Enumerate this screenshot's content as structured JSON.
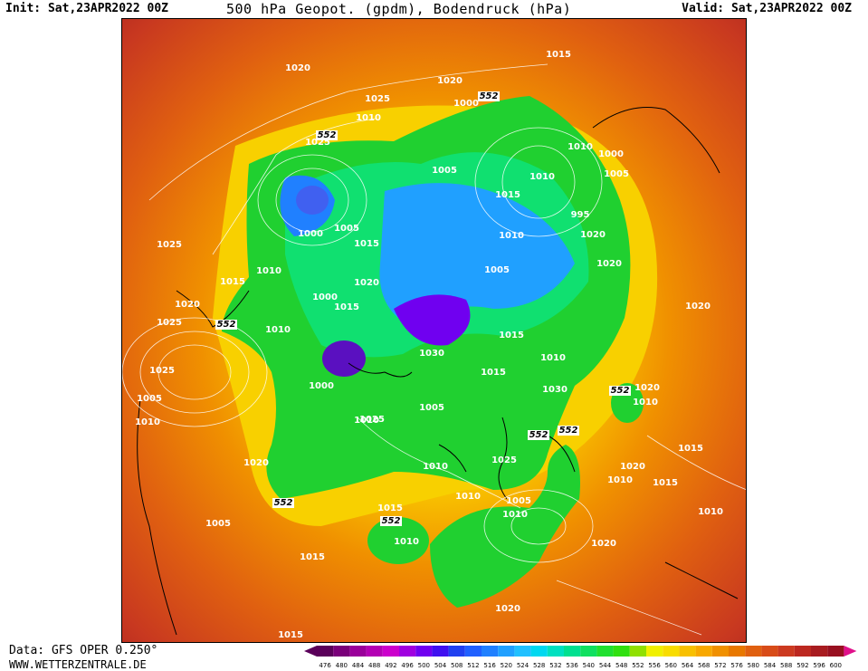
{
  "header": {
    "init": "Init: Sat,23APR2022 00Z",
    "title": "500 hPa Geopot. (gpdm), Bodendruck (hPa)",
    "valid": "Valid: Sat,23APR2022 00Z"
  },
  "footer": {
    "data_source": "Data: GFS OPER 0.250°",
    "site": "WWW.WETTERZENTRALE.DE"
  },
  "legend": {
    "values": [
      "476",
      "480",
      "484",
      "488",
      "492",
      "496",
      "500",
      "504",
      "508",
      "512",
      "516",
      "520",
      "524",
      "528",
      "532",
      "536",
      "540",
      "544",
      "548",
      "552",
      "556",
      "560",
      "564",
      "568",
      "572",
      "576",
      "580",
      "584",
      "588",
      "592",
      "596",
      "600"
    ],
    "colors": [
      "#5a005a",
      "#7a007a",
      "#9a009a",
      "#b400b4",
      "#cc00cc",
      "#a000e0",
      "#7000f0",
      "#4010f0",
      "#2040f0",
      "#2060ff",
      "#2080ff",
      "#20a0ff",
      "#20c0ff",
      "#00d8f0",
      "#00e0c0",
      "#00e090",
      "#10e060",
      "#20e030",
      "#30e010",
      "#90e000",
      "#f0f000",
      "#f8dc00",
      "#f8c000",
      "#f8a800",
      "#f09000",
      "#e87800",
      "#e06010",
      "#d84c18",
      "#cc3a20",
      "#bc2820",
      "#a81c20",
      "#981020"
    ],
    "end_color": "#e0108a"
  },
  "map": {
    "labels_552": [
      "552",
      "552",
      "552",
      "552",
      "552",
      "552",
      "552",
      "552"
    ],
    "isobars": [
      "1015",
      "1020",
      "1025",
      "1020",
      "1010",
      "1000",
      "1025",
      "1005",
      "1010",
      "1000",
      "1010",
      "1015",
      "1005",
      "995",
      "1000",
      "1005",
      "1015",
      "1010",
      "1020",
      "1020",
      "1010",
      "1005",
      "1015",
      "1025",
      "1020",
      "1000",
      "1015",
      "1020",
      "1020",
      "1025",
      "1010",
      "1015",
      "1025",
      "1030",
      "1015",
      "1010",
      "1005",
      "1000",
      "1030",
      "1020",
      "1010",
      "1010",
      "1005",
      "1025",
      "1010",
      "1015",
      "1020",
      "1010",
      "1025",
      "1020",
      "1010",
      "1015",
      "1010",
      "1005",
      "1015",
      "1010",
      "1010",
      "1020",
      "1010",
      "1005",
      "1015",
      "1020",
      "1015"
    ]
  }
}
